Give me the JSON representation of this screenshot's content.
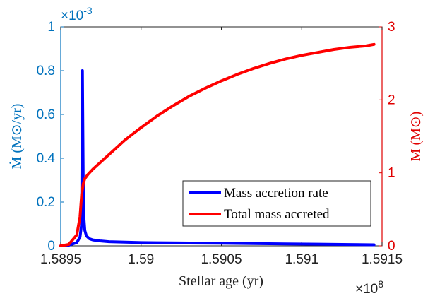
{
  "chart_data": {
    "type": "line",
    "xlabel": "Stellar age (yr)",
    "x_exponent": "×10",
    "x_exponent_power": "8",
    "xlim": [
      1.5895,
      1.5915
    ],
    "x_ticks": [
      "1.5895",
      "1.59",
      "1.5905",
      "1.591",
      "1.5915"
    ],
    "left_axis": {
      "label": "Ṁ (M⊙/yr)",
      "exponent": "×10",
      "exponent_power": "-3",
      "ylim": [
        0,
        1
      ],
      "ticks": [
        "0",
        "0.2",
        "0.4",
        "0.6",
        "0.8",
        "1"
      ],
      "color": "#0072BD"
    },
    "right_axis": {
      "label": "M (M⊙)",
      "ylim": [
        0,
        3
      ],
      "ticks": [
        "0",
        "1",
        "2",
        "3"
      ],
      "color": "#e00000"
    },
    "legend_position": "bottom-right",
    "series": [
      {
        "name": "Mass accretion rate",
        "axis": "left",
        "color": "#0000ff",
        "x": [
          1.5895,
          1.58955,
          1.5896,
          1.58962,
          1.58963,
          1.589635,
          1.58964,
          1.589645,
          1.58965,
          1.58966,
          1.58968,
          1.5897,
          1.58975,
          1.5898,
          1.5899,
          1.59,
          1.5901,
          1.5903,
          1.5905,
          1.5907,
          1.5909,
          1.5911,
          1.5913,
          1.59145
        ],
        "y": [
          0.0,
          0.003,
          0.015,
          0.04,
          0.1,
          0.8,
          0.3,
          0.12,
          0.07,
          0.045,
          0.032,
          0.027,
          0.022,
          0.019,
          0.017,
          0.015,
          0.014,
          0.013,
          0.012,
          0.0105,
          0.009,
          0.0075,
          0.006,
          0.005
        ]
      },
      {
        "name": "Total mass accreted",
        "axis": "right",
        "color": "#ff0000",
        "x": [
          1.5895,
          1.58955,
          1.5896,
          1.58962,
          1.58963,
          1.58964,
          1.58965,
          1.58967,
          1.5897,
          1.58975,
          1.5898,
          1.5899,
          1.59,
          1.5901,
          1.5902,
          1.5903,
          1.5904,
          1.5905,
          1.5906,
          1.5907,
          1.5908,
          1.5909,
          1.591,
          1.5911,
          1.5912,
          1.5913,
          1.5914,
          1.59145
        ],
        "y": [
          0.0,
          0.02,
          0.15,
          0.4,
          0.7,
          0.85,
          0.92,
          0.98,
          1.05,
          1.15,
          1.25,
          1.45,
          1.62,
          1.78,
          1.92,
          2.05,
          2.16,
          2.26,
          2.35,
          2.43,
          2.5,
          2.56,
          2.61,
          2.65,
          2.69,
          2.72,
          2.74,
          2.76
        ]
      }
    ]
  }
}
